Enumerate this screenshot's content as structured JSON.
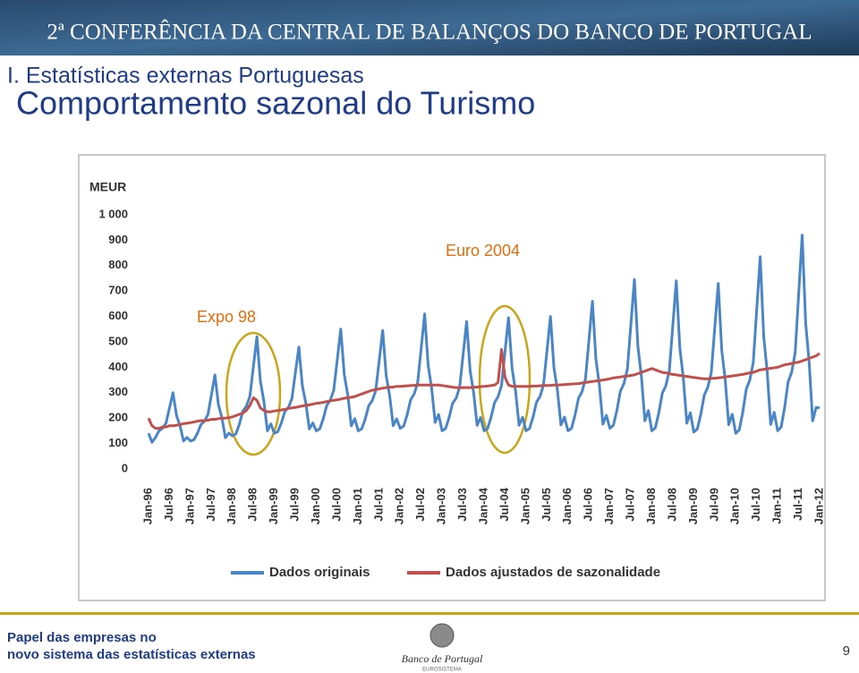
{
  "slide": {
    "banner": "2ª CONFERÊNCIA DA CENTRAL DE BALANÇOS DO BANCO DE PORTUGAL",
    "section": "I. Estatísticas externas Portuguesas",
    "title": "Comportamento sazonal do Turismo",
    "footer": [
      "Papel das empresas no",
      "novo sistema das estatísticas externas"
    ],
    "logo": "Banco de Portugal",
    "logo_sub": "EUROSISTEMA",
    "page_number": 9
  },
  "chart_data": {
    "type": "line",
    "y_label": "MEUR",
    "annotations": [
      "Expo 98",
      "Euro 2004"
    ],
    "categories": [
      "Jan-96",
      null,
      null,
      null,
      null,
      null,
      "Jul-96",
      null,
      null,
      null,
      null,
      null,
      "Jan-97",
      null,
      null,
      null,
      null,
      null,
      "Jul-97",
      null,
      null,
      null,
      null,
      null,
      "Jan-98",
      null,
      null,
      null,
      null,
      null,
      "Jul-98",
      null,
      null,
      null,
      null,
      null,
      "Jan-99",
      null,
      null,
      null,
      null,
      null,
      "Jul-99",
      null,
      null,
      null,
      null,
      null,
      "Jan-00",
      null,
      null,
      null,
      null,
      null,
      "Jul-00",
      null,
      null,
      null,
      null,
      null,
      "Jan-01",
      null,
      null,
      null,
      null,
      null,
      "Jul-01",
      null,
      null,
      null,
      null,
      null,
      "Jan-02",
      null,
      null,
      null,
      null,
      null,
      "Jul-02",
      null,
      null,
      null,
      null,
      null,
      "Jan-03",
      null,
      null,
      null,
      null,
      null,
      "Jul-03",
      null,
      null,
      null,
      null,
      null,
      "Jan-04",
      null,
      null,
      null,
      null,
      null,
      "Jul-04",
      null,
      null,
      null,
      null,
      null,
      "Jan-05",
      null,
      null,
      null,
      null,
      null,
      "Jul-05",
      null,
      null,
      null,
      null,
      null,
      "Jan-06",
      null,
      null,
      null,
      null,
      null,
      "Jul-06",
      null,
      null,
      null,
      null,
      null,
      "Jan-07",
      null,
      null,
      null,
      null,
      null,
      "Jul-07",
      null,
      null,
      null,
      null,
      null,
      "Jan-08",
      null,
      null,
      null,
      null,
      null,
      "Jul-08",
      null,
      null,
      null,
      null,
      null,
      "Jan-09",
      null,
      null,
      null,
      null,
      null,
      "Jul-09",
      null,
      null,
      null,
      null,
      null,
      "Jan-10",
      null,
      null,
      null,
      null,
      null,
      "Jul-10",
      null,
      null,
      null,
      null,
      null,
      "Jan-11",
      null,
      null,
      null,
      null,
      null,
      "Jul-11",
      null,
      null,
      null,
      null,
      null,
      "Jan-12"
    ],
    "series": [
      {
        "name": "Dados originais",
        "color": "#4a86c5",
        "values": [
          140,
          105,
          124,
          150,
          160,
          180,
          240,
          300,
          210,
          170,
          110,
          124,
          110,
          115,
          141,
          175,
          188,
          214,
          292,
          370,
          253,
          201,
          123,
          141,
          130,
          138,
          177,
          228,
          247,
          286,
          403,
          520,
          345,
          267,
          150,
          177,
          140,
          147,
          181,
          225,
          242,
          276,
          378,
          480,
          327,
          259,
          157,
          181,
          150,
          158,
          198,
          250,
          270,
          310,
          430,
          550,
          370,
          290,
          170,
          198,
          150,
          158,
          197,
          249,
          269,
          308,
          427,
          545,
          367,
          288,
          170,
          197,
          160,
          169,
          214,
          273,
          295,
          340,
          475,
          610,
          408,
          318,
          183,
          214,
          150,
          159,
          202,
          258,
          279,
          322,
          451,
          580,
          387,
          301,
          172,
          202,
          150,
          159,
          203,
          261,
          284,
          328,
          462,
          595,
          395,
          306,
          172,
          203,
          150,
          159,
          204,
          263,
          285,
          330,
          465,
          600,
          398,
          308,
          173,
          204,
          150,
          160,
          211,
          278,
          303,
          354,
          507,
          660,
          431,
          329,
          176,
          211,
          160,
          172,
          230,
          306,
          336,
          394,
          570,
          745,
          482,
          365,
          189,
          230,
          150,
          162,
          221,
          298,
          327,
          386,
          563,
          740,
          475,
          357,
          180,
          221,
          145,
          157,
          215,
          291,
          321,
          379,
          555,
          730,
          467,
          350,
          174,
          215,
          140,
          154,
          223,
          314,
          349,
          418,
          627,
          835,
          522,
          383,
          175,
          223,
          150,
          165,
          242,
          343,
          381,
          458,
          689,
          920,
          574,
          420,
          189,
          242,
          240
        ]
      },
      {
        "name": "Dados ajustados de sazonalidade",
        "color": "#c0504d",
        "values": [
          200,
          170,
          160,
          160,
          165,
          165,
          170,
          170,
          172,
          175,
          178,
          180,
          182,
          185,
          188,
          190,
          190,
          192,
          195,
          195,
          198,
          200,
          200,
          202,
          205,
          210,
          215,
          220,
          230,
          250,
          280,
          270,
          240,
          230,
          225,
          225,
          228,
          230,
          232,
          235,
          238,
          240,
          242,
          245,
          248,
          250,
          252,
          255,
          258,
          260,
          262,
          265,
          268,
          270,
          272,
          275,
          278,
          280,
          282,
          285,
          290,
          295,
          300,
          305,
          310,
          312,
          315,
          318,
          320,
          322,
          322,
          325,
          325,
          326,
          327,
          328,
          329,
          330,
          330,
          330,
          330,
          330,
          330,
          330,
          328,
          326,
          324,
          322,
          320,
          320,
          320,
          320,
          320,
          322,
          322,
          324,
          325,
          326,
          328,
          330,
          340,
          470,
          360,
          330,
          325,
          325,
          325,
          325,
          325,
          325,
          326,
          326,
          327,
          328,
          328,
          329,
          330,
          330,
          331,
          332,
          333,
          334,
          335,
          336,
          338,
          340,
          342,
          344,
          346,
          348,
          350,
          352,
          355,
          358,
          360,
          362,
          364,
          366,
          368,
          370,
          375,
          380,
          385,
          390,
          395,
          390,
          385,
          380,
          378,
          375,
          372,
          370,
          368,
          366,
          364,
          362,
          360,
          358,
          356,
          355,
          355,
          356,
          357,
          358,
          360,
          362,
          364,
          366,
          368,
          370,
          372,
          375,
          378,
          380,
          385,
          390,
          392,
          394,
          396,
          398,
          400,
          405,
          410,
          412,
          415,
          418,
          420,
          425,
          430,
          435,
          440,
          445,
          455
        ]
      }
    ],
    "ylim": [
      0,
      1000
    ],
    "yticks": [
      0,
      100,
      200,
      300,
      400,
      500,
      600,
      700,
      800,
      900,
      {
        "value": 1000,
        "label": "1 000"
      }
    ],
    "grid": false
  }
}
